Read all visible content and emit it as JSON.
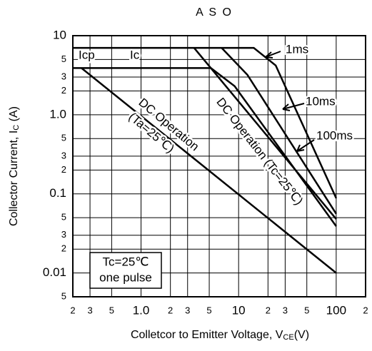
{
  "chart_data": {
    "type": "line",
    "title": "A S O",
    "ylabel": [
      "Collector Current, I",
      "C",
      " (A)"
    ],
    "xlabel": [
      "Colletcor to Emitter Voltage, V",
      "CE",
      "(V)"
    ],
    "xscale": "log",
    "yscale": "log",
    "grid": true,
    "color": "#000000",
    "xlim": [
      0.2,
      200
    ],
    "ylim": [
      0.005,
      10
    ],
    "xticks": [
      {
        "value": 0.2,
        "label": "2"
      },
      {
        "value": 0.3,
        "label": "3"
      },
      {
        "value": 0.5,
        "label": "5"
      },
      {
        "value": 1,
        "label": "1.0"
      },
      2,
      3,
      5,
      10,
      {
        "value": 20,
        "label": "2"
      },
      {
        "value": 30,
        "label": "3"
      },
      {
        "value": 50,
        "label": "5"
      },
      100,
      {
        "value": 200,
        "label": "2"
      }
    ],
    "yticks": [
      10,
      5,
      3,
      2,
      {
        "value": 1,
        "label": "1.0"
      },
      {
        "value": 0.5,
        "label": "5"
      },
      {
        "value": 0.3,
        "label": "3"
      },
      {
        "value": 0.2,
        "label": "2"
      },
      0.1,
      {
        "value": 0.05,
        "label": "5"
      },
      {
        "value": 0.03,
        "label": "3"
      },
      {
        "value": 0.02,
        "label": "2"
      },
      0.01,
      {
        "value": 0.005,
        "label": "5"
      }
    ],
    "series": [
      {
        "x": [
          0.2,
          14.3,
          24,
          100
        ],
        "values": [
          7,
          7,
          4.2,
          0.088
        ]
      },
      {
        "x": [
          6.7,
          12.3,
          100
        ],
        "values": [
          7,
          3.2,
          0.056
        ]
      },
      {
        "x": [
          3.5,
          100
        ],
        "values": [
          7,
          0.048
        ]
      },
      {
        "x": [
          0.2,
          5.2,
          9.1,
          100
        ],
        "values": [
          3.9,
          3.9,
          2.3,
          0.039
        ]
      },
      {
        "x": [
          0.245,
          100
        ],
        "values": [
          3.9,
          0.01
        ]
      }
    ],
    "annotations": [
      "1ms",
      "10ms",
      "100ms",
      "Icp",
      "Ic",
      "DC Operation",
      "(Ta=25℃)",
      "DC Operation (Tc=25℃)",
      "Tc=25℃",
      "one pulse"
    ]
  }
}
